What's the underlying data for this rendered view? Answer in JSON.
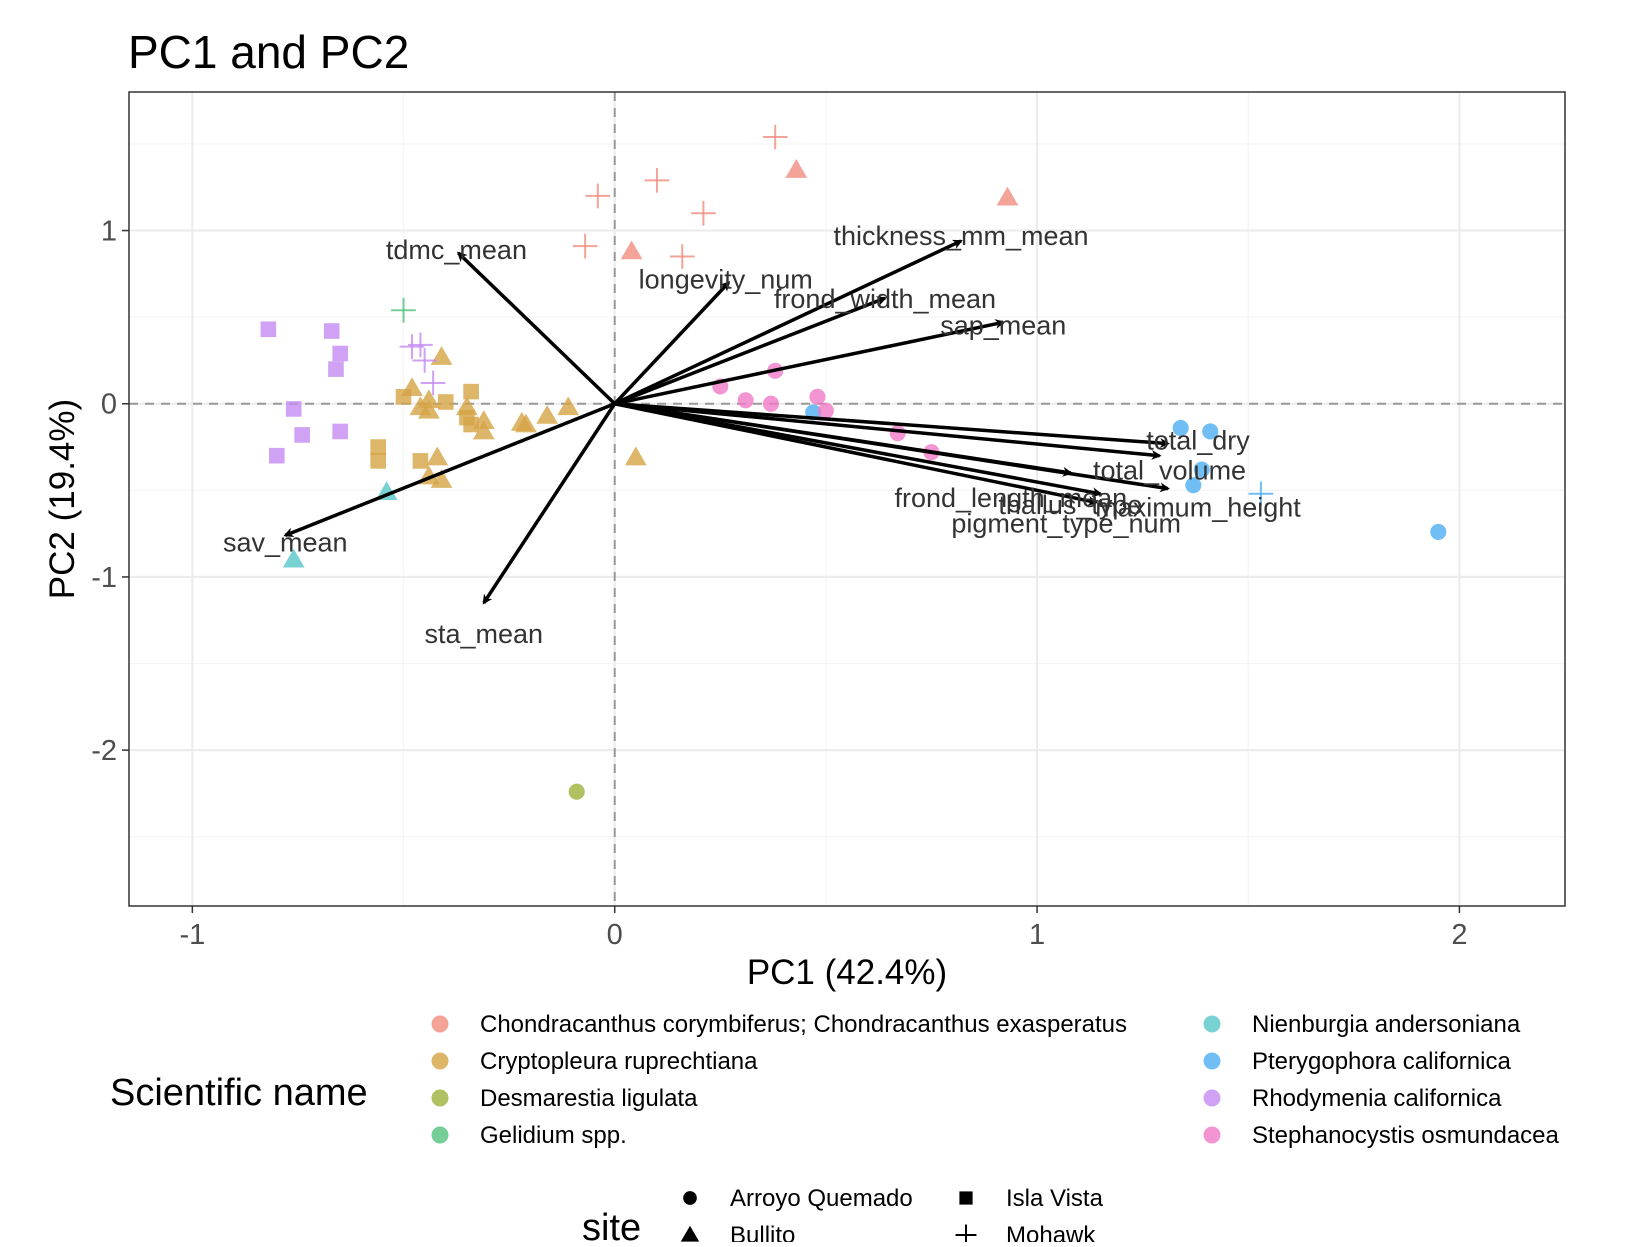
{
  "chart_data": {
    "type": "scatter",
    "title": "PC1 and PC2",
    "xlabel": "PC1 (42.4%)",
    "ylabel": "PC2 (19.4%)",
    "xlim": [
      -1.15,
      2.25
    ],
    "ylim": [
      -2.9,
      1.8
    ],
    "x_ticks": [
      -1,
      0,
      1,
      2
    ],
    "x_tick_labels": [
      "-1",
      "0",
      "1",
      "2"
    ],
    "y_ticks": [
      -2,
      -1,
      0,
      1
    ],
    "y_tick_labels": [
      "-2",
      "-1",
      "0",
      "1"
    ],
    "grid": true,
    "reference_lines": {
      "x": 0,
      "y": 0,
      "style": "dashed"
    },
    "species_legend": {
      "title": "Scientific name",
      "placement": "bottom",
      "entries": [
        {
          "name": "Chondracanthus corymbiferus; Chondracanthus exasperatus",
          "color": "#F08C7E"
        },
        {
          "name": "Cryptopleura ruprechtiana",
          "color": "#D4A445"
        },
        {
          "name": "Desmarestia ligulata",
          "color": "#9CB13B"
        },
        {
          "name": "Gelidium spp.",
          "color": "#52C17E"
        },
        {
          "name": "Nienburgia andersoniana",
          "color": "#56C7C8"
        },
        {
          "name": "Pterygophora californica",
          "color": "#4DAEF2"
        },
        {
          "name": "Rhodymenia californica",
          "color": "#C38BF2"
        },
        {
          "name": "Stephanocystis osmundacea",
          "color": "#F07AC8"
        }
      ]
    },
    "site_legend": {
      "title": "site",
      "placement": "bottom",
      "entries": [
        {
          "name": "Arroyo Quemado",
          "shape": "circle"
        },
        {
          "name": "Bullito",
          "shape": "triangle"
        },
        {
          "name": "Isla Vista",
          "shape": "square"
        },
        {
          "name": "Mohawk",
          "shape": "plus"
        }
      ]
    },
    "points": [
      {
        "x": 0.38,
        "y": 1.54,
        "species": 0,
        "site": 3
      },
      {
        "x": 0.43,
        "y": 1.35,
        "species": 0,
        "site": 1
      },
      {
        "x": 0.93,
        "y": 1.19,
        "species": 0,
        "site": 1
      },
      {
        "x": 0.1,
        "y": 1.29,
        "species": 0,
        "site": 3
      },
      {
        "x": -0.04,
        "y": 1.2,
        "species": 0,
        "site": 3
      },
      {
        "x": 0.21,
        "y": 1.1,
        "species": 0,
        "site": 3
      },
      {
        "x": -0.07,
        "y": 0.91,
        "species": 0,
        "site": 3
      },
      {
        "x": 0.04,
        "y": 0.88,
        "species": 0,
        "site": 1
      },
      {
        "x": 0.16,
        "y": 0.85,
        "species": 0,
        "site": 3
      },
      {
        "x": -0.41,
        "y": 0.27,
        "species": 1,
        "site": 1
      },
      {
        "x": -0.48,
        "y": 0.09,
        "species": 1,
        "site": 1
      },
      {
        "x": -0.5,
        "y": 0.04,
        "species": 1,
        "site": 2
      },
      {
        "x": -0.46,
        "y": -0.02,
        "species": 1,
        "site": 1
      },
      {
        "x": -0.44,
        "y": 0.02,
        "species": 1,
        "site": 1
      },
      {
        "x": -0.44,
        "y": -0.04,
        "species": 1,
        "site": 1
      },
      {
        "x": -0.4,
        "y": 0.01,
        "species": 1,
        "site": 2
      },
      {
        "x": -0.34,
        "y": 0.07,
        "species": 1,
        "site": 2
      },
      {
        "x": -0.35,
        "y": -0.08,
        "species": 1,
        "site": 2
      },
      {
        "x": -0.34,
        "y": -0.12,
        "species": 1,
        "site": 2
      },
      {
        "x": -0.35,
        "y": -0.02,
        "species": 1,
        "site": 1
      },
      {
        "x": -0.31,
        "y": -0.1,
        "species": 1,
        "site": 1
      },
      {
        "x": -0.31,
        "y": -0.16,
        "species": 1,
        "site": 1
      },
      {
        "x": -0.22,
        "y": -0.11,
        "species": 1,
        "site": 1
      },
      {
        "x": -0.21,
        "y": -0.12,
        "species": 1,
        "site": 1
      },
      {
        "x": -0.16,
        "y": -0.07,
        "species": 1,
        "site": 1
      },
      {
        "x": -0.11,
        "y": -0.02,
        "species": 1,
        "site": 1
      },
      {
        "x": -0.56,
        "y": -0.33,
        "species": 1,
        "site": 2
      },
      {
        "x": -0.56,
        "y": -0.25,
        "species": 1,
        "site": 2
      },
      {
        "x": -0.46,
        "y": -0.33,
        "species": 1,
        "site": 2
      },
      {
        "x": -0.42,
        "y": -0.31,
        "species": 1,
        "site": 1
      },
      {
        "x": -0.44,
        "y": -0.42,
        "species": 1,
        "site": 1
      },
      {
        "x": -0.41,
        "y": -0.44,
        "species": 1,
        "site": 1
      },
      {
        "x": 0.05,
        "y": -0.31,
        "species": 1,
        "site": 1
      },
      {
        "x": -0.09,
        "y": -2.24,
        "species": 2,
        "site": 0
      },
      {
        "x": -0.5,
        "y": 0.54,
        "species": 3,
        "site": 3
      },
      {
        "x": -0.54,
        "y": -0.51,
        "species": 4,
        "site": 1
      },
      {
        "x": -0.76,
        "y": -0.9,
        "species": 4,
        "site": 1
      },
      {
        "x": 1.34,
        "y": -0.14,
        "species": 5,
        "site": 0
      },
      {
        "x": 1.41,
        "y": -0.16,
        "species": 5,
        "site": 0
      },
      {
        "x": 1.39,
        "y": -0.38,
        "species": 5,
        "site": 0
      },
      {
        "x": 1.37,
        "y": -0.47,
        "species": 5,
        "site": 0
      },
      {
        "x": 1.53,
        "y": -0.52,
        "species": 5,
        "site": 3
      },
      {
        "x": 0.47,
        "y": -0.05,
        "species": 5,
        "site": 0
      },
      {
        "x": 1.95,
        "y": -0.74,
        "species": 5,
        "site": 0
      },
      {
        "x": -0.82,
        "y": 0.43,
        "species": 6,
        "site": 2
      },
      {
        "x": -0.67,
        "y": 0.42,
        "species": 6,
        "site": 2
      },
      {
        "x": -0.65,
        "y": 0.29,
        "species": 6,
        "site": 2
      },
      {
        "x": -0.66,
        "y": 0.2,
        "species": 6,
        "site": 2
      },
      {
        "x": -0.76,
        "y": -0.03,
        "species": 6,
        "site": 2
      },
      {
        "x": -0.74,
        "y": -0.18,
        "species": 6,
        "site": 2
      },
      {
        "x": -0.65,
        "y": -0.16,
        "species": 6,
        "site": 2
      },
      {
        "x": -0.8,
        "y": -0.3,
        "species": 6,
        "site": 2
      },
      {
        "x": -0.48,
        "y": 0.33,
        "species": 6,
        "site": 3
      },
      {
        "x": -0.46,
        "y": 0.34,
        "species": 6,
        "site": 3
      },
      {
        "x": -0.45,
        "y": 0.25,
        "species": 6,
        "site": 3
      },
      {
        "x": -0.43,
        "y": 0.12,
        "species": 6,
        "site": 3
      },
      {
        "x": 0.25,
        "y": 0.1,
        "species": 7,
        "site": 0
      },
      {
        "x": 0.31,
        "y": 0.02,
        "species": 7,
        "site": 0
      },
      {
        "x": 0.37,
        "y": 0.0,
        "species": 7,
        "site": 0
      },
      {
        "x": 0.38,
        "y": 0.19,
        "species": 7,
        "site": 0
      },
      {
        "x": 0.48,
        "y": 0.04,
        "species": 7,
        "site": 0
      },
      {
        "x": 0.5,
        "y": -0.04,
        "species": 7,
        "site": 0
      },
      {
        "x": 0.67,
        "y": -0.17,
        "species": 7,
        "site": 0
      },
      {
        "x": 0.75,
        "y": -0.28,
        "species": 7,
        "site": 0
      }
    ],
    "loadings": [
      {
        "name": "thickness_mm_mean",
        "x": 0.82,
        "y": 0.94
      },
      {
        "name": "tdmc_mean",
        "x": -0.37,
        "y": 0.87
      },
      {
        "name": "longevity_num",
        "x": 0.27,
        "y": 0.7
      },
      {
        "name": "frond_width_mean",
        "x": 0.64,
        "y": 0.61
      },
      {
        "name": "sap_mean",
        "x": 0.92,
        "y": 0.47
      },
      {
        "name": "sav_mean",
        "x": -0.78,
        "y": -0.76
      },
      {
        "name": "sta_mean",
        "x": -0.31,
        "y": -1.15
      },
      {
        "name": "total_dry",
        "x": 1.31,
        "y": -0.23
      },
      {
        "name": "total_volume",
        "x": 1.29,
        "y": -0.3
      },
      {
        "name": "frond_length_mean",
        "x": 1.08,
        "y": -0.4
      },
      {
        "name": "maximum_height",
        "x": 1.31,
        "y": -0.49
      },
      {
        "name": "thallus_type",
        "x": 1.15,
        "y": -0.52
      },
      {
        "name": "pigment_type_num",
        "x": 1.14,
        "y": -0.57
      }
    ]
  },
  "loading_label_text": [
    "thickness_mm_mean",
    "tdmc_mean",
    "longevity_num",
    "frond_width_mean",
    "sap_mean",
    "sav_mean",
    "sta_mean",
    "total_dry",
    "total_volume",
    "frond_length_mean",
    "maximum_height",
    "thallus_type",
    "pigment_type_num"
  ],
  "colors": {
    "panel_border": "#333333",
    "grid_major": "#ebebeb",
    "grid_minor": "#f5f5f5",
    "reference_line": "#9a9a9a",
    "arrow": "#000000",
    "tick_text": "#4d4d4d"
  }
}
